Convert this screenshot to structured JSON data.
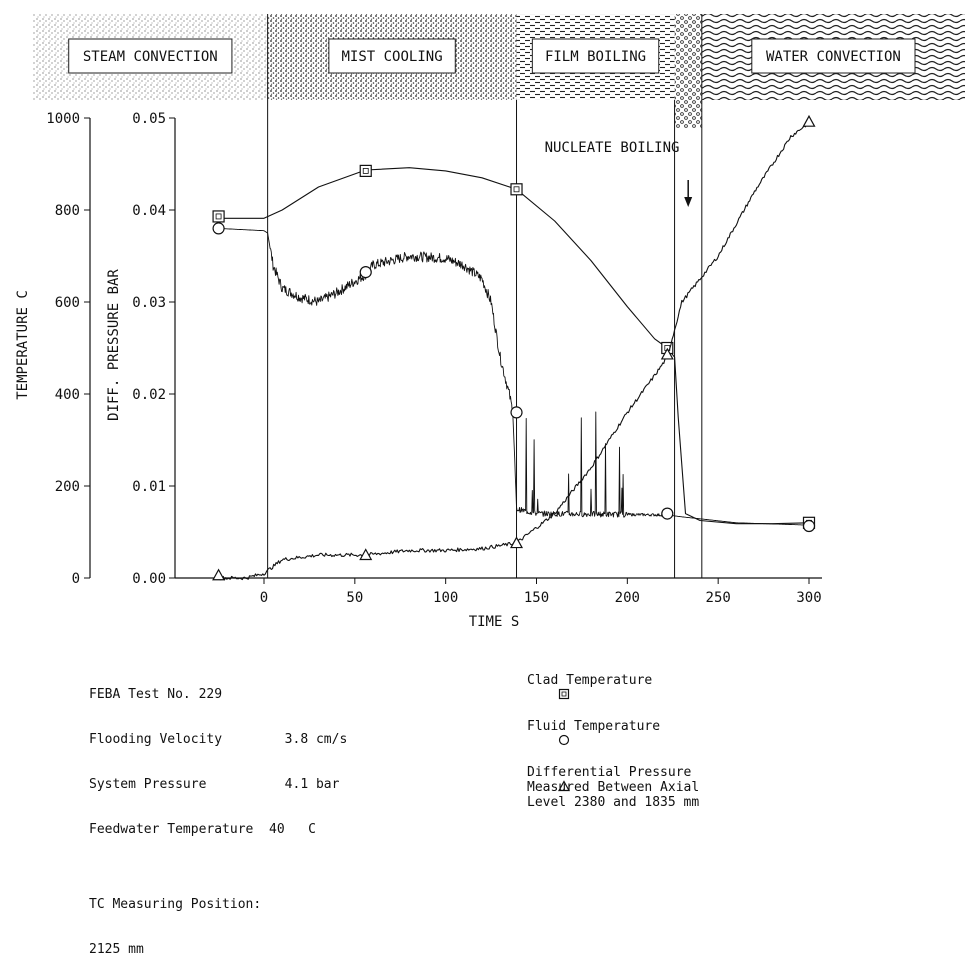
{
  "chart_data": {
    "type": "line",
    "regimes": [
      {
        "name": "STEAM CONVECTION",
        "from": -33,
        "to": 2
      },
      {
        "name": "MIST COOLING",
        "from": 2,
        "to": 139
      },
      {
        "name": "FILM BOILING",
        "from": 139,
        "to": 226
      },
      {
        "name": "NUCLEATE BOILING",
        "from": 226,
        "to": 241
      },
      {
        "name": "WATER CONVECTION",
        "from": 241,
        "to": 315
      }
    ],
    "vlines": [
      2,
      139,
      226,
      241
    ],
    "xlabel": "TIME S",
    "xticks": [
      "0",
      "50",
      "100",
      "150",
      "200",
      "250",
      "300"
    ],
    "xlim": [
      -33,
      318
    ],
    "ylabel_left": "TEMPERATURE C",
    "yticks_left": [
      "0",
      "200",
      "400",
      "600",
      "800",
      "1000"
    ],
    "ylim_left": [
      0,
      1000
    ],
    "ylabel_right": "DIFF. PRESSURE BAR",
    "yticks_right": [
      "0.00",
      "0.01",
      "0.02",
      "0.03",
      "0.04",
      "0.05"
    ],
    "ylim_right": [
      0,
      0.05
    ],
    "series": [
      {
        "name": "Clad Temperature",
        "marker": "square",
        "unit": "C",
        "x": [
          -25,
          0,
          10,
          30,
          56,
          80,
          100,
          120,
          139,
          160,
          180,
          200,
          215,
          222,
          226,
          228,
          232,
          240,
          260,
          280,
          300
        ],
        "y": [
          782,
          782,
          800,
          850,
          887,
          892,
          885,
          870,
          845,
          776,
          690,
          590,
          520,
          500,
          480,
          350,
          140,
          125,
          118,
          118,
          120
        ],
        "markers_x": [
          -25,
          56,
          139,
          222,
          300
        ],
        "markers_y": [
          786,
          885,
          845,
          500,
          120
        ]
      },
      {
        "name": "Fluid Temperature",
        "marker": "circle",
        "unit": "C",
        "x": [
          -25,
          0,
          2,
          5,
          10,
          20,
          30,
          40,
          56,
          60,
          80,
          100,
          110,
          120,
          125,
          130,
          135,
          137,
          139,
          150,
          200,
          222,
          230,
          260,
          300
        ],
        "y": [
          760,
          755,
          750,
          680,
          630,
          610,
          600,
          620,
          660,
          680,
          700,
          695,
          680,
          650,
          600,
          480,
          400,
          360,
          150,
          140,
          138,
          137,
          133,
          120,
          115
        ],
        "markers_x": [
          -25,
          56,
          139,
          222,
          300
        ],
        "markers_y": [
          760,
          665,
          360,
          140,
          113
        ]
      },
      {
        "name": "Differential Pressure Measured Between Axial Level 2380 and 1835 mm",
        "marker": "triangle",
        "unit": "bar",
        "x": [
          -25,
          -10,
          0,
          10,
          30,
          56,
          80,
          100,
          120,
          139,
          160,
          180,
          200,
          215,
          222,
          230,
          250,
          270,
          290,
          300
        ],
        "y": [
          0.0,
          0.0,
          0.0005,
          0.002,
          0.0025,
          0.0025,
          0.003,
          0.003,
          0.0032,
          0.0038,
          0.007,
          0.012,
          0.018,
          0.022,
          0.024,
          0.03,
          0.035,
          0.042,
          0.048,
          0.0495
        ],
        "markers_x": [
          -25,
          56,
          139,
          222,
          300
        ],
        "markers_y": [
          0.0003,
          0.0025,
          0.0038,
          0.0243,
          0.0496
        ]
      }
    ],
    "annotations": [
      {
        "text": "NUCLEATE BOILING"
      }
    ]
  },
  "info": {
    "lines": [
      "FEBA Test No. 229",
      "Flooding Velocity        3.8 cm/s",
      "System Pressure          4.1 bar",
      "Feedwater Temperature  40   C",
      "",
      "TC Measuring Position:",
      "2125 mm"
    ]
  },
  "legend": [
    {
      "symbol": "square",
      "label": "Clad Temperature"
    },
    {
      "symbol": "circle",
      "label": "Fluid Temperature"
    },
    {
      "symbol": "triangle",
      "label": "Differential Pressure\nMeasured Between Axial\nLevel 2380 and 1835 mm"
    }
  ]
}
